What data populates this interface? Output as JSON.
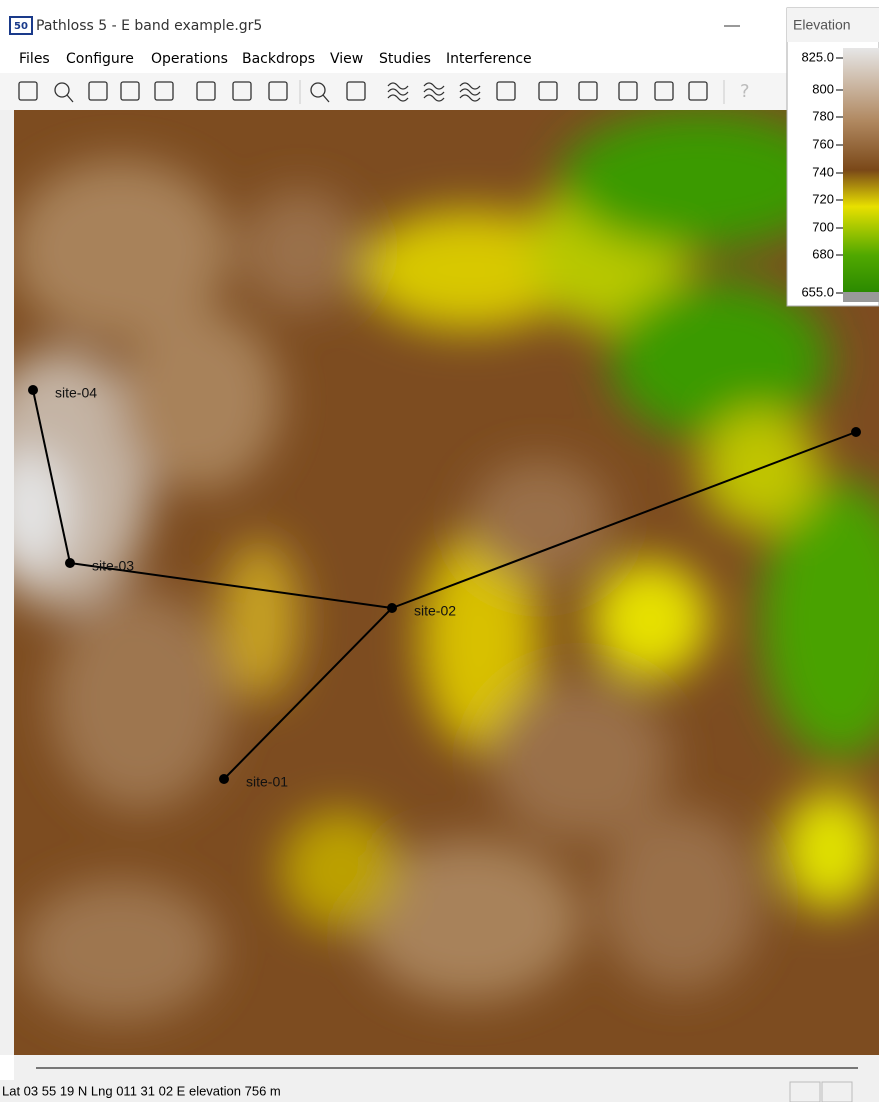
{
  "window": {
    "icon": "50",
    "title": "Pathloss 5 - E band example.gr5"
  },
  "menu": [
    "Files",
    "Configure",
    "Operations",
    "Backdrops",
    "View",
    "Studies",
    "Interference"
  ],
  "legend": {
    "title": "Elevation",
    "labels": [
      "825.0",
      "800",
      "780",
      "760",
      "740",
      "720",
      "700",
      "680",
      "655.0"
    ]
  },
  "sites": [
    "site-04",
    "site-03",
    "site-02",
    "site-01"
  ],
  "status": "Lat 03 55 19 N  Lng 011 31 02 E  elevation 756 m"
}
